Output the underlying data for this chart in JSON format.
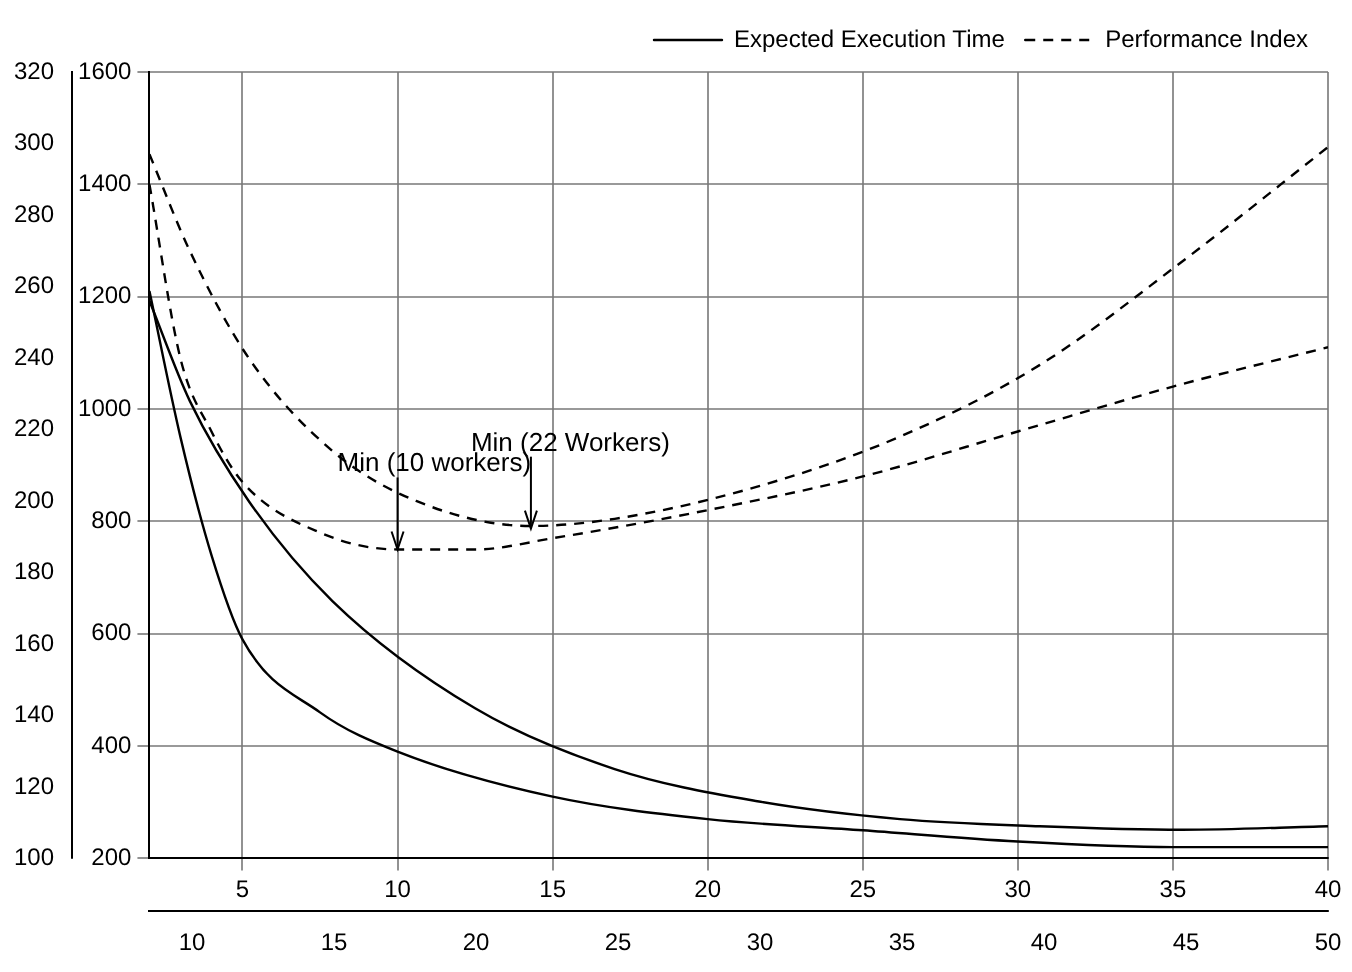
{
  "chart_data": {
    "type": "line",
    "legend": "top right",
    "grid": true,
    "xlim": [
      2,
      40
    ],
    "xticks": [
      5,
      10,
      15,
      20,
      25,
      30,
      35,
      40
    ],
    "x2lim": [
      8.5,
      50
    ],
    "x2ticks": [
      10,
      15,
      20,
      25,
      30,
      35,
      40,
      45,
      50
    ],
    "ylim": [
      200,
      1600
    ],
    "yticks": [
      200,
      400,
      600,
      800,
      1000,
      1200,
      1400,
      1600
    ],
    "y2lim": [
      100,
      320
    ],
    "y2ticks": [
      100,
      120,
      140,
      160,
      180,
      200,
      220,
      240,
      260,
      280,
      300,
      320
    ],
    "series": [
      {
        "name": "Expected Execution Time",
        "color": "#000000",
        "line_style": "solid",
        "x": [
          2,
          3,
          4,
          5,
          7.5,
          10,
          15,
          20,
          25,
          30,
          35,
          40
        ],
        "values": [
          1210,
          950,
          740,
          590,
          460,
          390,
          310,
          270,
          250,
          230,
          220,
          220
        ]
      },
      {
        "name": "Performance Index",
        "color": "#000000",
        "line_style": "dashed",
        "x": [
          2,
          3,
          4,
          5,
          7.5,
          10,
          12.5,
          15,
          20,
          25,
          30,
          35,
          40
        ],
        "values": [
          1400,
          1090,
          960,
          870,
          780,
          750,
          750,
          770,
          820,
          880,
          960,
          1040,
          1110
        ]
      },
      {
        "color": "#000000",
        "line_style": "solid",
        "axis": "y2",
        "x": [
          2,
          3.3,
          5.2,
          7.9,
          12.5,
          17,
          21.6,
          26.2,
          30.7,
          35.3,
          40
        ],
        "values": [
          256,
          228,
          200,
          172,
          142,
          125,
          116,
          111,
          109,
          108,
          109
        ]
      },
      {
        "color": "#000000",
        "line_style": "dashed",
        "axis": "y2",
        "x": [
          2,
          3.3,
          5.2,
          7.9,
          10.6,
          14.3,
          17,
          21.6,
          26.2,
          30.7,
          35.3,
          40
        ],
        "values": [
          297,
          270,
          240,
          214,
          200,
          193,
          195,
          204,
          218,
          238,
          267,
          299
        ]
      }
    ],
    "annotations": [
      {
        "text": "Min (10 workers)",
        "x": 10,
        "y": 750
      },
      {
        "text": "Min (22 Workers)",
        "x": 14.3,
        "y": 787
      }
    ]
  }
}
